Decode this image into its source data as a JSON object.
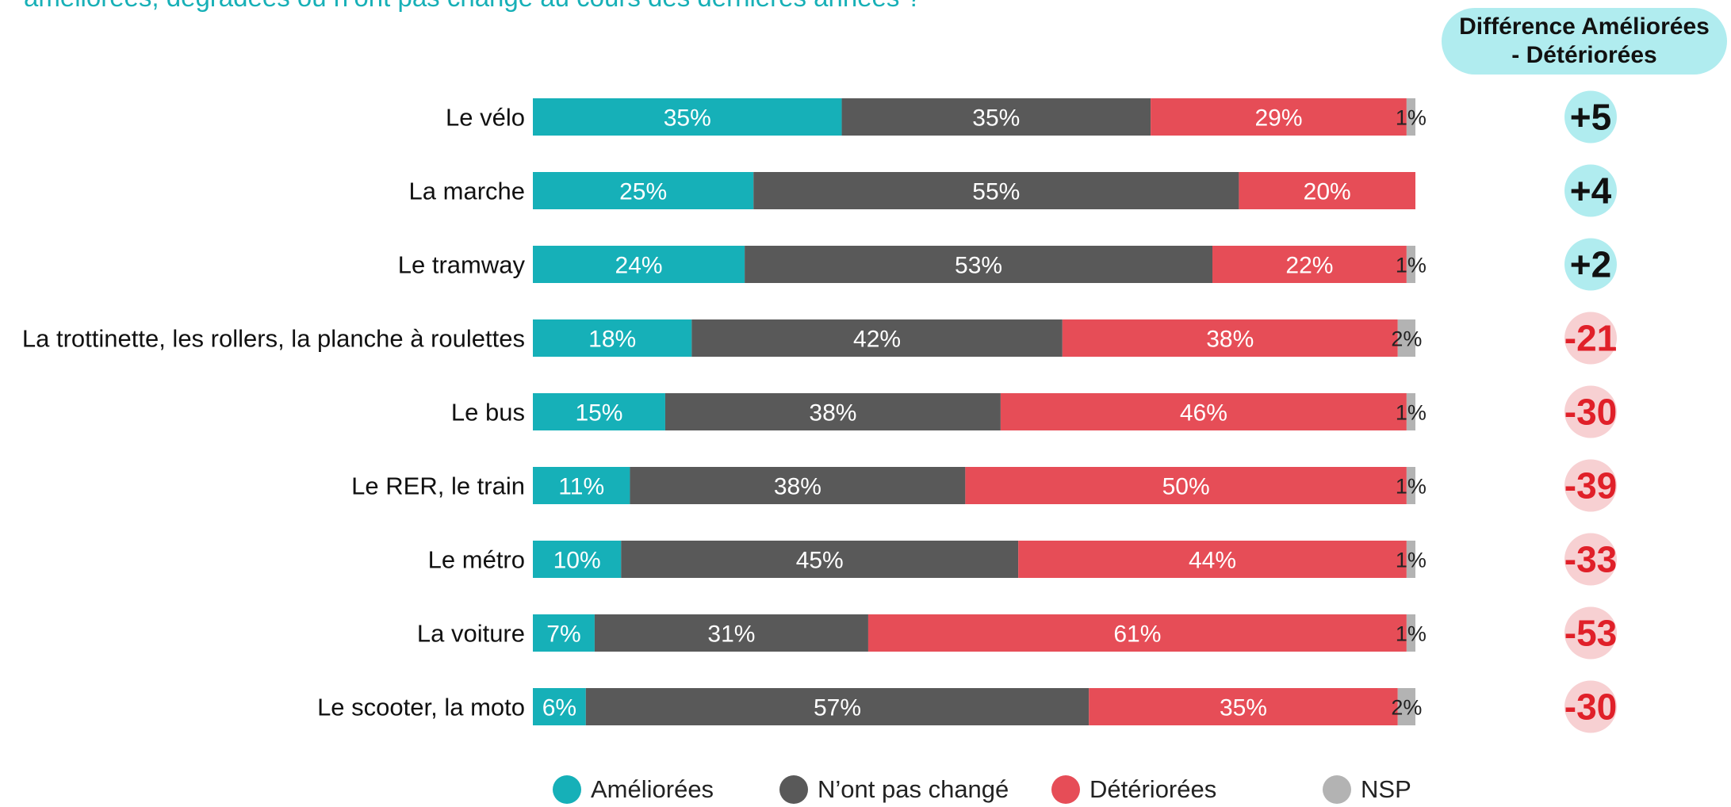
{
  "header": {
    "question": "améliorées, dégradées ou n’ont pas changé au cours des dernières années ?",
    "diff_label_line1": "Différence Améliorées",
    "diff_label_line2": "- Détériorées"
  },
  "colors": {
    "ameliorees": "#16b0b8",
    "pas_change": "#595959",
    "deteriorees": "#e64d57",
    "nsp": "#b3b3b3",
    "diff_positive_bg": "#b0ecef",
    "diff_negative_bg": "#f7d0d2",
    "diff_positive_text": "#111111",
    "diff_negative_text": "#e02029"
  },
  "chart_data": {
    "type": "bar",
    "orientation": "horizontal",
    "stacked": true,
    "categories": [
      "Le vélo",
      "La marche",
      "Le tramway",
      "La trottinette, les rollers, la planche à roulettes",
      "Le bus",
      "Le RER, le train",
      "Le métro",
      "La voiture",
      "Le scooter, la moto"
    ],
    "series": [
      {
        "name": "Améliorées",
        "values": [
          35,
          25,
          24,
          18,
          15,
          11,
          10,
          7,
          6
        ]
      },
      {
        "name": "N’ont pas changé",
        "values": [
          35,
          55,
          53,
          42,
          38,
          38,
          45,
          31,
          57
        ]
      },
      {
        "name": "Détériorées",
        "values": [
          29,
          20,
          22,
          38,
          46,
          50,
          44,
          61,
          35
        ]
      },
      {
        "name": "NSP",
        "values": [
          1,
          null,
          1,
          2,
          1,
          1,
          1,
          1,
          2
        ]
      }
    ],
    "difference": [
      "+5",
      "+4",
      "+2",
      "-21",
      "-30",
      "-39",
      "-33",
      "-53",
      "-30"
    ],
    "value_suffix": "%",
    "xlim": [
      0,
      100
    ],
    "legend_position": "bottom"
  }
}
